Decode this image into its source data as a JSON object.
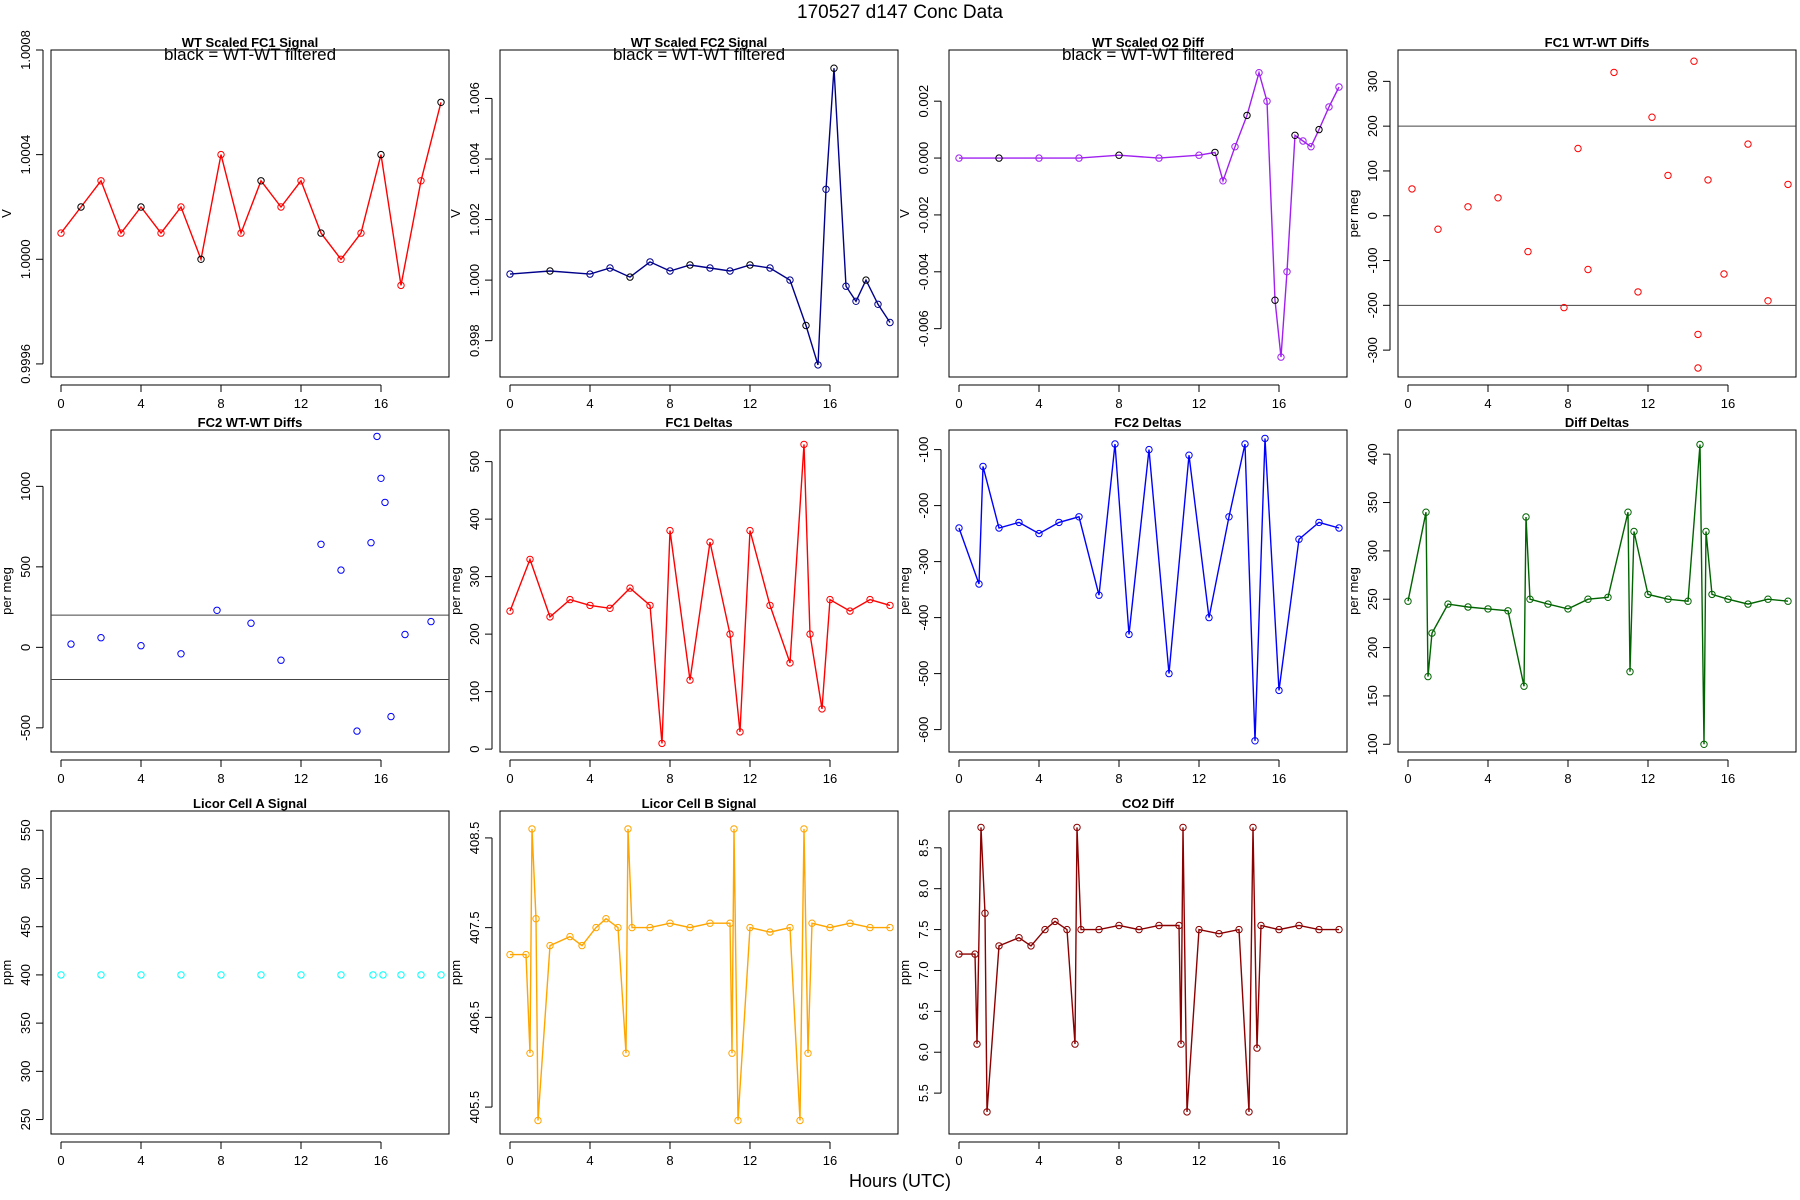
{
  "page": {
    "title": "170527   d147   Conc Data",
    "x_caption": "Hours (UTC)"
  },
  "chart_data": [
    {
      "id": "p1",
      "type": "line",
      "title": "WT Scaled FC1 Signal",
      "annotation": "black = WT-WT filtered",
      "ylabel": "V",
      "color": "#ff0000",
      "filtered_color": "#000000",
      "xlim": [
        -0.5,
        19.4
      ],
      "xticks": [
        0,
        4,
        8,
        12,
        16
      ],
      "xtick_labels": [
        "0",
        "4",
        "8",
        "12",
        "16"
      ],
      "ylim": [
        0.99955,
        1.0008
      ],
      "yticks": [
        0.9996,
        1.0,
        1.0004,
        1.0008
      ],
      "ytick_labels": [
        "0.9996",
        "1.0000",
        "1.0004",
        "1.0008"
      ],
      "series": [
        {
          "name": "signal",
          "x": [
            0,
            1,
            2,
            3,
            4,
            5,
            6,
            7,
            8,
            9,
            10,
            11,
            12,
            13,
            14,
            15,
            16,
            17,
            18,
            19
          ],
          "values": [
            1.0001,
            1.0002,
            1.0003,
            1.0001,
            1.0002,
            1.0001,
            1.0002,
            1.0,
            1.0004,
            1.0001,
            1.0003,
            1.0002,
            1.0003,
            1.0001,
            1.0,
            1.0001,
            1.0004,
            0.9999,
            1.0003,
            1.0006
          ]
        }
      ]
    },
    {
      "id": "p2",
      "type": "line",
      "title": "WT Scaled FC2 Signal",
      "annotation": "black = WT-WT filtered",
      "ylabel": "V",
      "color": "#00008b",
      "filtered_color": "#000000",
      "xlim": [
        -0.5,
        19.4
      ],
      "xticks": [
        0,
        4,
        8,
        12,
        16
      ],
      "xtick_labels": [
        "0",
        "4",
        "8",
        "12",
        "16"
      ],
      "ylim": [
        0.9968,
        1.0076
      ],
      "yticks": [
        0.998,
        1.0,
        1.002,
        1.004,
        1.006
      ],
      "ytick_labels": [
        "0.998",
        "1.000",
        "1.002",
        "1.004",
        "1.006"
      ],
      "series": [
        {
          "name": "signal",
          "x": [
            0,
            2,
            4,
            5,
            6,
            7,
            8,
            9,
            10,
            11,
            12,
            13,
            14,
            14.8,
            15.4,
            15.8,
            16.2,
            16.8,
            17.3,
            17.8,
            18.4,
            19
          ],
          "values": [
            1.0002,
            1.0003,
            1.0002,
            1.0004,
            1.0001,
            1.0006,
            1.0003,
            1.0005,
            1.0004,
            1.0003,
            1.0005,
            1.0004,
            1.0,
            0.9985,
            0.9972,
            1.003,
            1.007,
            0.9998,
            0.9993,
            1.0,
            0.9992,
            0.9986
          ]
        }
      ]
    },
    {
      "id": "p3",
      "type": "line",
      "title": "WT Scaled O2 Diff",
      "annotation": "black = WT-WT filtered",
      "ylabel": "V",
      "color": "#a020f0",
      "filtered_color": "#000000",
      "xlim": [
        -0.5,
        19.4
      ],
      "xticks": [
        0,
        4,
        8,
        12,
        16
      ],
      "xtick_labels": [
        "0",
        "4",
        "8",
        "12",
        "16"
      ],
      "ylim": [
        -0.0077,
        0.0038
      ],
      "yticks": [
        -0.006,
        -0.004,
        -0.002,
        0.0,
        0.002
      ],
      "ytick_labels": [
        "-0.006",
        "-0.004",
        "-0.002",
        "0.000",
        "0.002"
      ],
      "series": [
        {
          "name": "diff",
          "x": [
            0,
            2,
            4,
            6,
            8,
            10,
            12,
            12.8,
            13.2,
            13.8,
            14.4,
            15,
            15.4,
            15.8,
            16.1,
            16.4,
            16.8,
            17.2,
            17.6,
            18,
            18.5,
            19
          ],
          "values": [
            0.0,
            0.0,
            0.0,
            0.0,
            0.0001,
            0.0,
            0.0001,
            0.0002,
            -0.0008,
            0.0004,
            0.0015,
            0.003,
            0.002,
            -0.005,
            -0.007,
            -0.004,
            0.0008,
            0.0006,
            0.0004,
            0.001,
            0.0018,
            0.0025
          ]
        }
      ]
    },
    {
      "id": "p4",
      "type": "scatter",
      "title": "FC1 WT-WT Diffs",
      "ylabel": "per meg",
      "color": "#ff0000",
      "xlim": [
        -0.5,
        19.4
      ],
      "xticks": [
        0,
        4,
        8,
        12,
        16
      ],
      "xtick_labels": [
        "0",
        "4",
        "8",
        "12",
        "16"
      ],
      "ylim": [
        -360,
        370
      ],
      "yticks": [
        -300,
        -200,
        -100,
        0,
        100,
        200,
        300
      ],
      "ytick_labels": [
        "-300",
        "-200",
        "-100",
        "0",
        "100",
        "200",
        "300"
      ],
      "hlines": [
        200,
        -200
      ],
      "series": [
        {
          "name": "diffs",
          "x": [
            0.2,
            1.5,
            3.0,
            4.5,
            6.0,
            7.8,
            8.5,
            9.0,
            10.3,
            11.5,
            12.2,
            13.0,
            14.3,
            14.5,
            14.5,
            15.0,
            15.8,
            17.0,
            18.0,
            19.0
          ],
          "values": [
            60,
            -30,
            20,
            40,
            -80,
            -205,
            150,
            -120,
            320,
            -170,
            220,
            90,
            345,
            -265,
            -340,
            80,
            -130,
            160,
            -190,
            70
          ]
        }
      ]
    },
    {
      "id": "p5",
      "type": "scatter",
      "title": "FC2 WT-WT Diffs",
      "ylabel": "per meg",
      "color": "#0000ff",
      "xlim": [
        -0.5,
        19.4
      ],
      "xticks": [
        0,
        4,
        8,
        12,
        16
      ],
      "xtick_labels": [
        "0",
        "4",
        "8",
        "12",
        "16"
      ],
      "ylim": [
        -650,
        1350
      ],
      "yticks": [
        -500,
        0,
        500,
        1000
      ],
      "ytick_labels": [
        "-500",
        "0",
        "500",
        "1000"
      ],
      "hlines": [
        200,
        -200
      ],
      "series": [
        {
          "name": "diffs",
          "x": [
            0.5,
            2.0,
            4.0,
            6.0,
            7.8,
            9.5,
            11.0,
            13.0,
            14.0,
            14.8,
            15.5,
            15.8,
            16.0,
            16.2,
            16.5,
            17.2,
            18.5
          ],
          "values": [
            20,
            60,
            10,
            -40,
            230,
            150,
            -80,
            640,
            480,
            -520,
            650,
            1310,
            1050,
            900,
            -430,
            80,
            160
          ]
        }
      ]
    },
    {
      "id": "p6",
      "type": "line",
      "title": "FC1 Deltas",
      "ylabel": "per meg",
      "color": "#ff0000",
      "xlim": [
        -0.5,
        19.4
      ],
      "xticks": [
        0,
        4,
        8,
        12,
        16
      ],
      "xtick_labels": [
        "0",
        "4",
        "8",
        "12",
        "16"
      ],
      "ylim": [
        -5,
        555
      ],
      "yticks": [
        0,
        100,
        200,
        300,
        400,
        500
      ],
      "ytick_labels": [
        "0",
        "100",
        "200",
        "300",
        "400",
        "500"
      ],
      "series": [
        {
          "name": "deltas",
          "x": [
            0,
            1,
            2,
            3,
            4,
            5,
            6,
            7,
            7.6,
            8,
            9,
            10,
            11,
            11.5,
            12,
            13,
            14,
            14.7,
            15,
            15.6,
            16,
            17,
            18,
            19
          ],
          "values": [
            240,
            330,
            230,
            260,
            250,
            245,
            280,
            250,
            10,
            380,
            120,
            360,
            200,
            30,
            380,
            250,
            150,
            530,
            200,
            70,
            260,
            240,
            260,
            250
          ]
        }
      ]
    },
    {
      "id": "p7",
      "type": "line",
      "title": "FC2 Deltas",
      "ylabel": "per meg",
      "color": "#0000ff",
      "xlim": [
        -0.5,
        19.4
      ],
      "xticks": [
        0,
        4,
        8,
        12,
        16
      ],
      "xtick_labels": [
        "0",
        "4",
        "8",
        "12",
        "16"
      ],
      "ylim": [
        -640,
        -65
      ],
      "yticks": [
        -600,
        -500,
        -400,
        -300,
        -200,
        -100
      ],
      "ytick_labels": [
        "-600",
        "-500",
        "-400",
        "-300",
        "-200",
        "-100"
      ],
      "series": [
        {
          "name": "deltas",
          "x": [
            0,
            1,
            1.2,
            2,
            3,
            4,
            5,
            6,
            7,
            7.8,
            8.5,
            9.5,
            10.5,
            11.5,
            12.5,
            13.5,
            14.3,
            14.8,
            15.3,
            16,
            17,
            18,
            19
          ],
          "values": [
            -240,
            -340,
            -130,
            -240,
            -230,
            -250,
            -230,
            -220,
            -360,
            -90,
            -430,
            -100,
            -500,
            -110,
            -400,
            -220,
            -90,
            -620,
            -80,
            -530,
            -260,
            -230,
            -240
          ]
        }
      ]
    },
    {
      "id": "p8",
      "type": "line",
      "title": "Diff Deltas",
      "ylabel": "per meg",
      "color": "#006400",
      "xlim": [
        -0.5,
        19.4
      ],
      "xticks": [
        0,
        4,
        8,
        12,
        16
      ],
      "xtick_labels": [
        "0",
        "4",
        "8",
        "12",
        "16"
      ],
      "ylim": [
        92,
        425
      ],
      "yticks": [
        100,
        150,
        200,
        250,
        300,
        350,
        400
      ],
      "ytick_labels": [
        "100",
        "150",
        "200",
        "250",
        "300",
        "350",
        "400"
      ],
      "series": [
        {
          "name": "deltas",
          "x": [
            0,
            0.9,
            1.0,
            1.2,
            2,
            3,
            4,
            5,
            5.8,
            5.9,
            6.1,
            7,
            8,
            9,
            10,
            11,
            11.1,
            11.3,
            12,
            13,
            14,
            14.6,
            14.8,
            14.9,
            15.2,
            16,
            17,
            18,
            19
          ],
          "values": [
            248,
            340,
            170,
            215,
            245,
            242,
            240,
            238,
            160,
            335,
            250,
            245,
            240,
            250,
            252,
            340,
            175,
            320,
            255,
            250,
            248,
            410,
            100,
            320,
            255,
            250,
            245,
            250,
            248
          ]
        }
      ]
    },
    {
      "id": "p9",
      "type": "scatter",
      "title": "Licor Cell A Signal",
      "ylabel": "ppm",
      "color": "#00ffff",
      "xlim": [
        -0.5,
        19.4
      ],
      "xticks": [
        0,
        4,
        8,
        12,
        16
      ],
      "xtick_labels": [
        "0",
        "4",
        "8",
        "12",
        "16"
      ],
      "ylim": [
        235,
        570
      ],
      "yticks": [
        250,
        300,
        350,
        400,
        450,
        500,
        550
      ],
      "ytick_labels": [
        "250",
        "300",
        "350",
        "400",
        "450",
        "500",
        "550"
      ],
      "series": [
        {
          "name": "signal",
          "x": [
            0,
            2,
            4,
            6,
            8,
            10,
            12,
            14,
            15.6,
            16.1,
            17,
            18,
            19
          ],
          "values": [
            400,
            400,
            400,
            400,
            400,
            400,
            400,
            400,
            400,
            400,
            400,
            400,
            400
          ]
        }
      ]
    },
    {
      "id": "p10",
      "type": "line",
      "title": "Licor Cell B Signal",
      "ylabel": "ppm",
      "color": "#ffa500",
      "xlim": [
        -0.5,
        19.4
      ],
      "xticks": [
        0,
        4,
        8,
        12,
        16
      ],
      "xtick_labels": [
        "0",
        "4",
        "8",
        "12",
        "16"
      ],
      "ylim": [
        405.2,
        408.8
      ],
      "yticks": [
        405.5,
        406.5,
        407.5,
        408.5
      ],
      "ytick_labels": [
        "405.5",
        "406.5",
        "407.5",
        "408.5"
      ],
      "series": [
        {
          "name": "signal",
          "x": [
            0,
            0.8,
            1.0,
            1.1,
            1.3,
            1.4,
            2,
            3,
            3.6,
            4.3,
            4.8,
            5.4,
            5.8,
            5.9,
            6.1,
            7,
            8,
            9,
            10,
            11,
            11.1,
            11.2,
            11.4,
            12,
            13,
            14,
            14.5,
            14.7,
            14.9,
            15.1,
            16,
            17,
            18,
            19
          ],
          "values": [
            407.2,
            407.2,
            406.1,
            408.6,
            407.6,
            405.35,
            407.3,
            407.4,
            407.3,
            407.5,
            407.6,
            407.5,
            406.1,
            408.6,
            407.5,
            407.5,
            407.55,
            407.5,
            407.55,
            407.55,
            406.1,
            408.6,
            405.35,
            407.5,
            407.45,
            407.5,
            405.35,
            408.6,
            406.1,
            407.55,
            407.5,
            407.55,
            407.5,
            407.5
          ]
        }
      ]
    },
    {
      "id": "p11",
      "type": "line",
      "title": "CO2 Diff",
      "ylabel": "ppm",
      "color": "#8b0000",
      "xlim": [
        -0.5,
        19.4
      ],
      "xticks": [
        0,
        4,
        8,
        12,
        16
      ],
      "xtick_labels": [
        "0",
        "4",
        "8",
        "12",
        "16"
      ],
      "ylim": [
        5.0,
        8.95
      ],
      "yticks": [
        5.5,
        6.0,
        6.5,
        7.0,
        7.5,
        8.0,
        8.5
      ],
      "ytick_labels": [
        "5.5",
        "6.0",
        "6.5",
        "7.0",
        "7.5",
        "8.0",
        "8.5"
      ],
      "series": [
        {
          "name": "diff",
          "x": [
            0,
            0.8,
            0.9,
            1.1,
            1.3,
            1.4,
            2,
            3,
            3.6,
            4.3,
            4.8,
            5.4,
            5.8,
            5.9,
            6.1,
            7,
            8,
            9,
            10,
            11,
            11.1,
            11.2,
            11.4,
            12,
            13,
            14,
            14.5,
            14.7,
            14.9,
            15.1,
            16,
            17,
            18,
            19
          ],
          "values": [
            7.2,
            7.2,
            6.1,
            8.75,
            7.7,
            5.27,
            7.3,
            7.4,
            7.3,
            7.5,
            7.6,
            7.5,
            6.1,
            8.75,
            7.5,
            7.5,
            7.55,
            7.5,
            7.55,
            7.55,
            6.1,
            8.75,
            5.27,
            7.5,
            7.45,
            7.5,
            5.27,
            8.75,
            6.05,
            7.55,
            7.5,
            7.55,
            7.5,
            7.5
          ]
        }
      ]
    }
  ]
}
